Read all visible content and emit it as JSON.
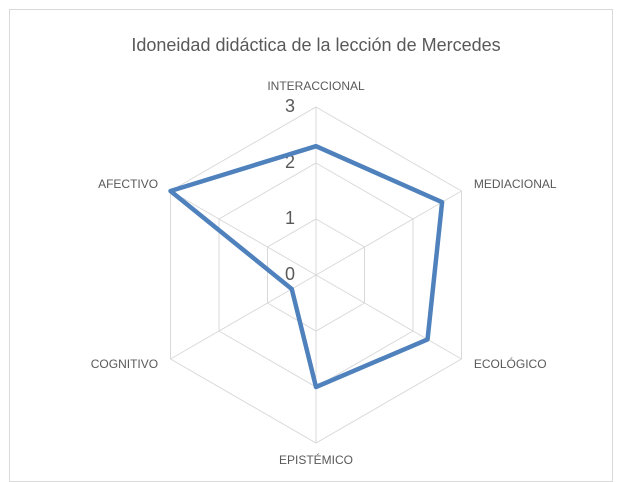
{
  "chart_data": {
    "type": "radar",
    "title": "Idoneidad didáctica de la lección de Mercedes",
    "categories": [
      "INTERACCIONAL",
      "MEDIACIONAL",
      "ECOLÓGICO",
      "EPISTÉMICO",
      "COGNITIVO",
      "AFECTIVO"
    ],
    "values": [
      2.3,
      2.6,
      2.3,
      2,
      0.5,
      3
    ],
    "color": "#4f81bd",
    "ylim": [
      0,
      3
    ],
    "yticks": [
      0,
      1,
      2,
      3
    ],
    "grid": true
  }
}
